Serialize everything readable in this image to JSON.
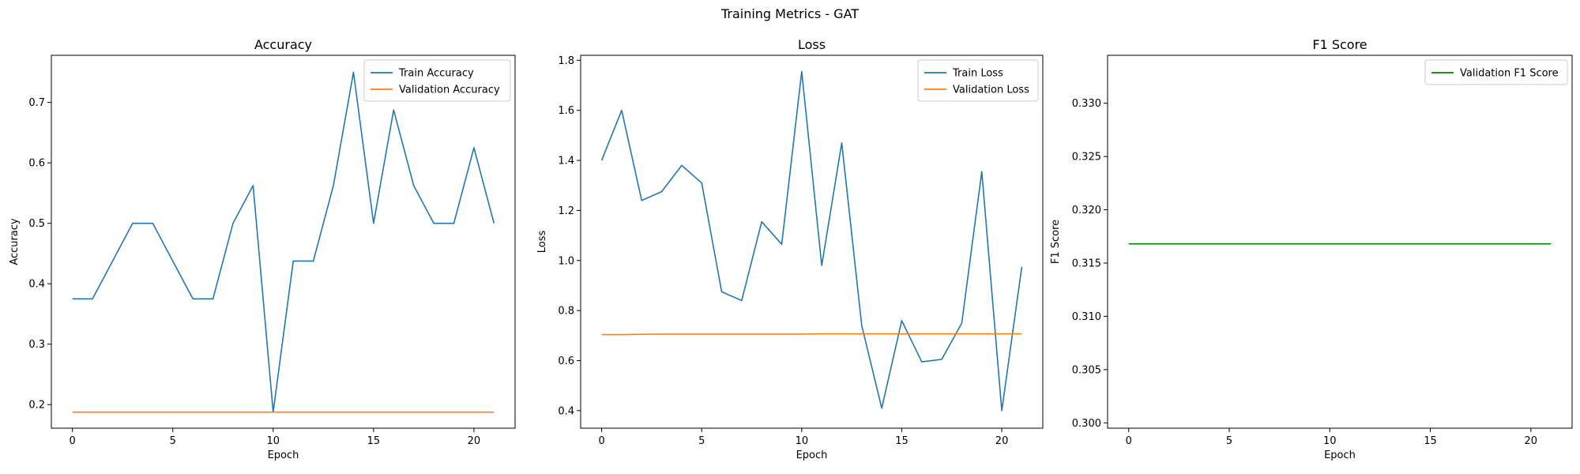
{
  "figure": {
    "suptitle": "Training Metrics - GAT"
  },
  "colors": {
    "blue": "#1f77b4",
    "orange": "#ff7f0e",
    "green": "#008000"
  },
  "chart_data": [
    {
      "type": "line",
      "title": "Accuracy",
      "xlabel": "Epoch",
      "ylabel": "Accuracy",
      "xlim": [
        -1.05,
        22.05
      ],
      "ylim": [
        0.161,
        0.778
      ],
      "xticks": [
        0,
        5,
        10,
        15,
        20
      ],
      "yticks": [
        0.2,
        0.3,
        0.4,
        0.5,
        0.6,
        0.7
      ],
      "ytick_labels": [
        "0.2",
        "0.3",
        "0.4",
        "0.5",
        "0.6",
        "0.7"
      ],
      "legend": "top-right",
      "x": [
        0,
        1,
        2,
        3,
        4,
        5,
        6,
        7,
        8,
        9,
        10,
        11,
        12,
        13,
        14,
        15,
        16,
        17,
        18,
        19,
        20,
        21
      ],
      "series": [
        {
          "name": "Train Accuracy",
          "color": "#1f77b4",
          "values": [
            0.375,
            0.375,
            0.4375,
            0.5,
            0.5,
            0.4375,
            0.375,
            0.375,
            0.5,
            0.5625,
            0.1875,
            0.4375,
            0.4375,
            0.5625,
            0.75,
            0.5,
            0.6875,
            0.5625,
            0.5,
            0.5,
            0.625,
            0.5
          ]
        },
        {
          "name": "Validation Accuracy",
          "color": "#ff7f0e",
          "values": [
            0.1875,
            0.1875,
            0.1875,
            0.1875,
            0.1875,
            0.1875,
            0.1875,
            0.1875,
            0.1875,
            0.1875,
            0.1875,
            0.1875,
            0.1875,
            0.1875,
            0.1875,
            0.1875,
            0.1875,
            0.1875,
            0.1875,
            0.1875,
            0.1875,
            0.1875
          ]
        }
      ]
    },
    {
      "type": "line",
      "title": "Loss",
      "xlabel": "Epoch",
      "ylabel": "Loss",
      "xlim": [
        -1.05,
        22.05
      ],
      "ylim": [
        0.33,
        1.82
      ],
      "xticks": [
        0,
        5,
        10,
        15,
        20
      ],
      "yticks": [
        0.4,
        0.6,
        0.8,
        1.0,
        1.2,
        1.4,
        1.6,
        1.8
      ],
      "ytick_labels": [
        "0.4",
        "0.6",
        "0.8",
        "1.0",
        "1.2",
        "1.4",
        "1.6",
        "1.8"
      ],
      "legend": "top-right",
      "x": [
        0,
        1,
        2,
        3,
        4,
        5,
        6,
        7,
        8,
        9,
        10,
        11,
        12,
        13,
        14,
        15,
        16,
        17,
        18,
        19,
        20,
        21
      ],
      "series": [
        {
          "name": "Train Loss",
          "color": "#1f77b4",
          "values": [
            1.4,
            1.6,
            1.24,
            1.275,
            1.38,
            1.31,
            0.875,
            0.84,
            1.155,
            1.065,
            1.755,
            0.98,
            1.47,
            0.74,
            0.41,
            0.76,
            0.595,
            0.605,
            0.75,
            1.355,
            0.4,
            0.975
          ]
        },
        {
          "name": "Validation Loss",
          "color": "#ff7f0e",
          "values": [
            0.704,
            0.704,
            0.705,
            0.706,
            0.706,
            0.706,
            0.706,
            0.706,
            0.706,
            0.706,
            0.706,
            0.707,
            0.707,
            0.707,
            0.707,
            0.707,
            0.707,
            0.707,
            0.707,
            0.707,
            0.707,
            0.707
          ]
        }
      ]
    },
    {
      "type": "line",
      "title": "F1 Score",
      "xlabel": "Epoch",
      "ylabel": "F1 Score",
      "xlim": [
        -1.05,
        22.05
      ],
      "ylim": [
        0.2995,
        0.3345
      ],
      "xticks": [
        0,
        5,
        10,
        15,
        20
      ],
      "yticks": [
        0.3,
        0.305,
        0.31,
        0.315,
        0.32,
        0.325,
        0.33
      ],
      "ytick_labels": [
        "0.300",
        "0.305",
        "0.310",
        "0.315",
        "0.320",
        "0.325",
        "0.330"
      ],
      "legend": "top-right",
      "x": [
        0,
        1,
        2,
        3,
        4,
        5,
        6,
        7,
        8,
        9,
        10,
        11,
        12,
        13,
        14,
        15,
        16,
        17,
        18,
        19,
        20,
        21
      ],
      "series": [
        {
          "name": "Validation F1 Score",
          "color": "#008000",
          "values": [
            0.3168,
            0.3168,
            0.3168,
            0.3168,
            0.3168,
            0.3168,
            0.3168,
            0.3168,
            0.3168,
            0.3168,
            0.3168,
            0.3168,
            0.3168,
            0.3168,
            0.3168,
            0.3168,
            0.3168,
            0.3168,
            0.3168,
            0.3168,
            0.3168,
            0.3168
          ]
        }
      ]
    }
  ]
}
